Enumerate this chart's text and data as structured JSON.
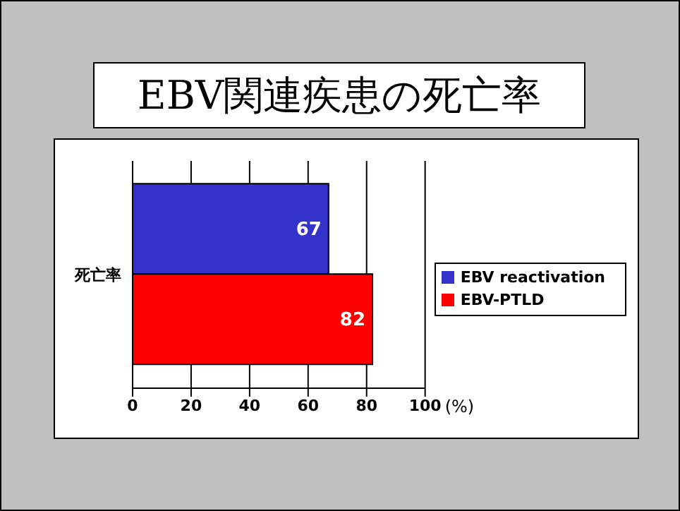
{
  "chart_data": {
    "type": "bar",
    "orientation": "horizontal",
    "title": "EBV関連疾患の死亡率",
    "xlabel": "(%)",
    "categories": [
      "死亡率"
    ],
    "series": [
      {
        "name": "EBV reactivation",
        "color": "#3333cc",
        "values": [
          67
        ]
      },
      {
        "name": "EBV-PTLD",
        "color": "#ff0000",
        "values": [
          82
        ]
      }
    ],
    "xlim": [
      0,
      100
    ],
    "xticks": [
      0,
      20,
      40,
      60,
      80,
      100
    ],
    "grid": "x",
    "legend": "right",
    "data_labels": true
  }
}
